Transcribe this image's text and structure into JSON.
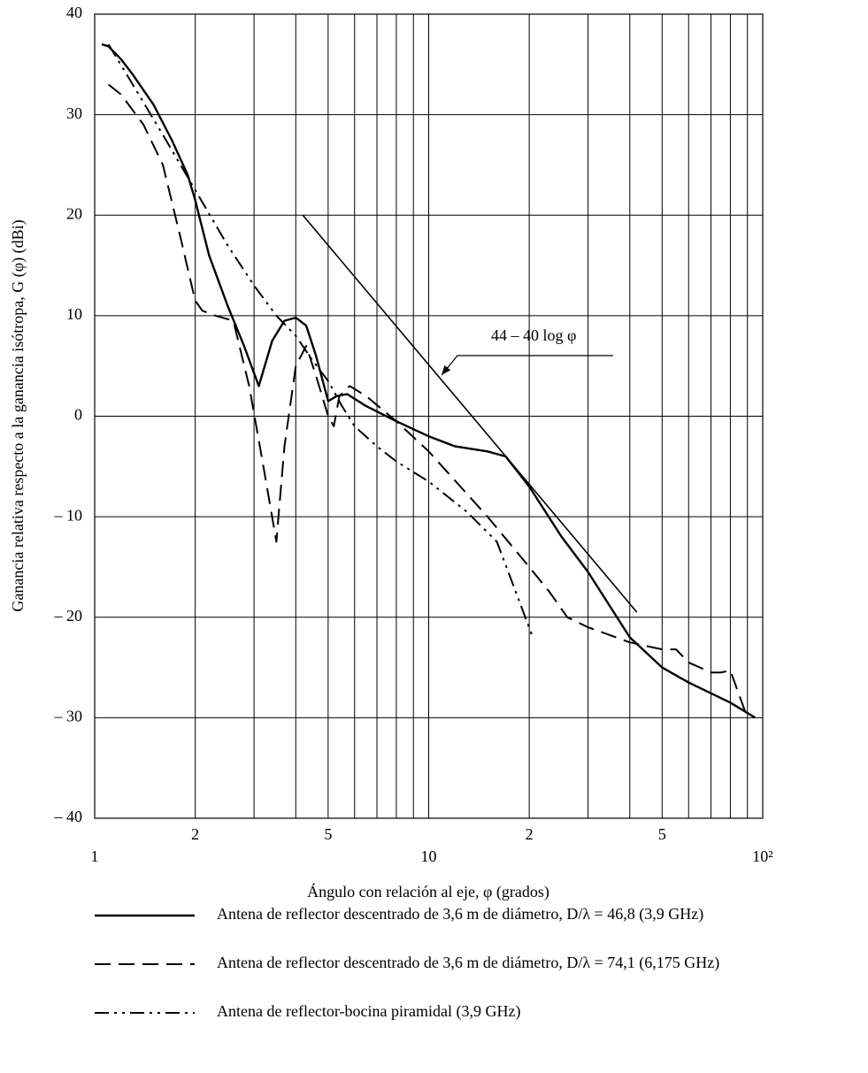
{
  "chart_data": {
    "type": "line",
    "x_label": "Ángulo con relación al eje, φ (grados)",
    "y_label": "Ganancia relativa respecto a la ganancia isótropa, G (φ) (dBi)",
    "xlog": true,
    "xlim": [
      1,
      100
    ],
    "ylim": [
      -40,
      40
    ],
    "xticks": [
      1,
      {
        "value": 2,
        "label": "2"
      },
      {
        "value": 5,
        "label": "5"
      },
      10,
      {
        "value": 20,
        "label": "2"
      },
      {
        "value": 50,
        "label": "5"
      },
      {
        "value": 100,
        "label": "10²"
      }
    ],
    "xminor": [
      3,
      4,
      6,
      7,
      8,
      9,
      30,
      40,
      60,
      70,
      80,
      90
    ],
    "yticks": [
      40,
      30,
      20,
      10,
      0,
      {
        "value": -10,
        "label": "– 10"
      },
      {
        "value": -20,
        "label": "– 20"
      },
      {
        "value": -30,
        "label": "– 30"
      },
      {
        "value": -40,
        "label": "– 40"
      }
    ],
    "grid": true,
    "series": [
      {
        "name": "Antena de reflector descentrado de 3,6 m de diámetro, D/λ = 46,8 (3,9 GHz)",
        "color": "#000000",
        "style": "solid",
        "x": [
          1.05,
          1.1,
          1.2,
          1.3,
          1.5,
          1.7,
          1.9,
          2.0,
          2.2,
          2.5,
          2.8,
          3.1,
          3.4,
          3.7,
          4.0,
          4.3,
          4.6,
          5.0,
          5.3,
          5.7,
          6.5,
          8,
          10,
          12,
          15,
          17,
          20,
          25,
          30,
          40,
          50,
          60,
          80,
          95
        ],
        "values": [
          37,
          36.8,
          35.5,
          34,
          31,
          27.5,
          24,
          21.5,
          16,
          11,
          7,
          3,
          7.5,
          9.5,
          9.8,
          9,
          6,
          1.5,
          2,
          2.2,
          1,
          -0.5,
          -2,
          -3,
          -3.5,
          -4,
          -7,
          -12,
          -15.5,
          -22,
          -25,
          -26.5,
          -28.5,
          -30
        ]
      },
      {
        "name": "Antena de reflector descentrado de 3,6 m de diámetro, D/λ = 74,1 (6,175 GHz)",
        "color": "#000000",
        "style": "dashed",
        "x": [
          1.1,
          1.2,
          1.4,
          1.6,
          1.8,
          2.0,
          2.1,
          2.3,
          2.6,
          2.9,
          3.2,
          3.5,
          3.55,
          3.7,
          4.0,
          4.3,
          4.6,
          5.0,
          5.2,
          5.4,
          5.8,
          6.5,
          8,
          10,
          15,
          20,
          23,
          26,
          30,
          40,
          50,
          55,
          60,
          70,
          75,
          80,
          90
        ],
        "values": [
          33,
          32,
          29,
          25,
          18,
          11.5,
          10.5,
          10,
          9.5,
          3,
          -5,
          -12.5,
          -10,
          -3,
          5,
          7,
          4,
          0,
          -1,
          2,
          3,
          2,
          -0.5,
          -3.5,
          -10,
          -15,
          -17.5,
          -20,
          -21,
          -22.5,
          -23.2,
          -23.2,
          -24.5,
          -25.5,
          -25.5,
          -25.3,
          -30
        ]
      },
      {
        "name": "Antena de reflector-bocina piramidal (3,9 GHz)",
        "color": "#000000",
        "style": "dashdot",
        "x": [
          1.1,
          1.3,
          1.6,
          2.0,
          2.5,
          3.0,
          3.5,
          4.0,
          4.5,
          5.0,
          5.5,
          6.0,
          7.0,
          8,
          10,
          13,
          16,
          18,
          20.5
        ],
        "values": [
          37,
          33,
          28,
          22.5,
          17,
          13,
          10,
          8,
          5.5,
          3.5,
          1,
          -1,
          -3,
          -4.5,
          -6.5,
          -9.5,
          -12.5,
          -17,
          -22
        ]
      }
    ],
    "reference_line": {
      "label": "44 – 40 log φ",
      "color": "#000000",
      "x": [
        4.2,
        42
      ],
      "values": [
        20,
        -19.5
      ]
    }
  }
}
